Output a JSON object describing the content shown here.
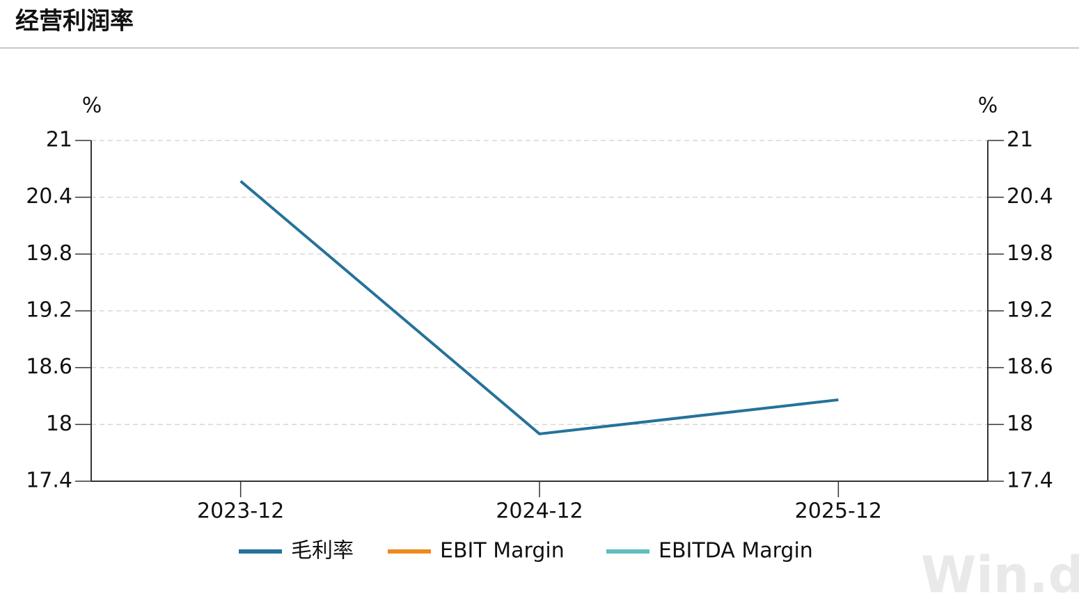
{
  "chart_data": {
    "type": "line",
    "title": "经营利润率",
    "ylabel": "%",
    "y2label": "%",
    "categories": [
      "2023-12",
      "2024-12",
      "2025-12"
    ],
    "series": [
      {
        "name": "毛利率",
        "color": "#25729a",
        "values": [
          20.57,
          17.9,
          18.26
        ]
      },
      {
        "name": "EBIT Margin",
        "color": "#ee8a1f",
        "values": [
          null,
          null,
          null
        ]
      },
      {
        "name": "EBITDA Margin",
        "color": "#5ebdbe",
        "values": [
          null,
          null,
          null
        ],
        "axis": "y2"
      }
    ],
    "ylim": [
      17.4,
      21
    ],
    "yticks": [
      17.4,
      18,
      18.6,
      19.2,
      19.8,
      20.4,
      21
    ],
    "y2lim": [
      17.4,
      21
    ],
    "y2ticks": [
      17.4,
      18,
      18.6,
      19.2,
      19.8,
      20.4,
      21
    ],
    "grid": true,
    "legend": "bottom",
    "watermark": "Win.d"
  }
}
